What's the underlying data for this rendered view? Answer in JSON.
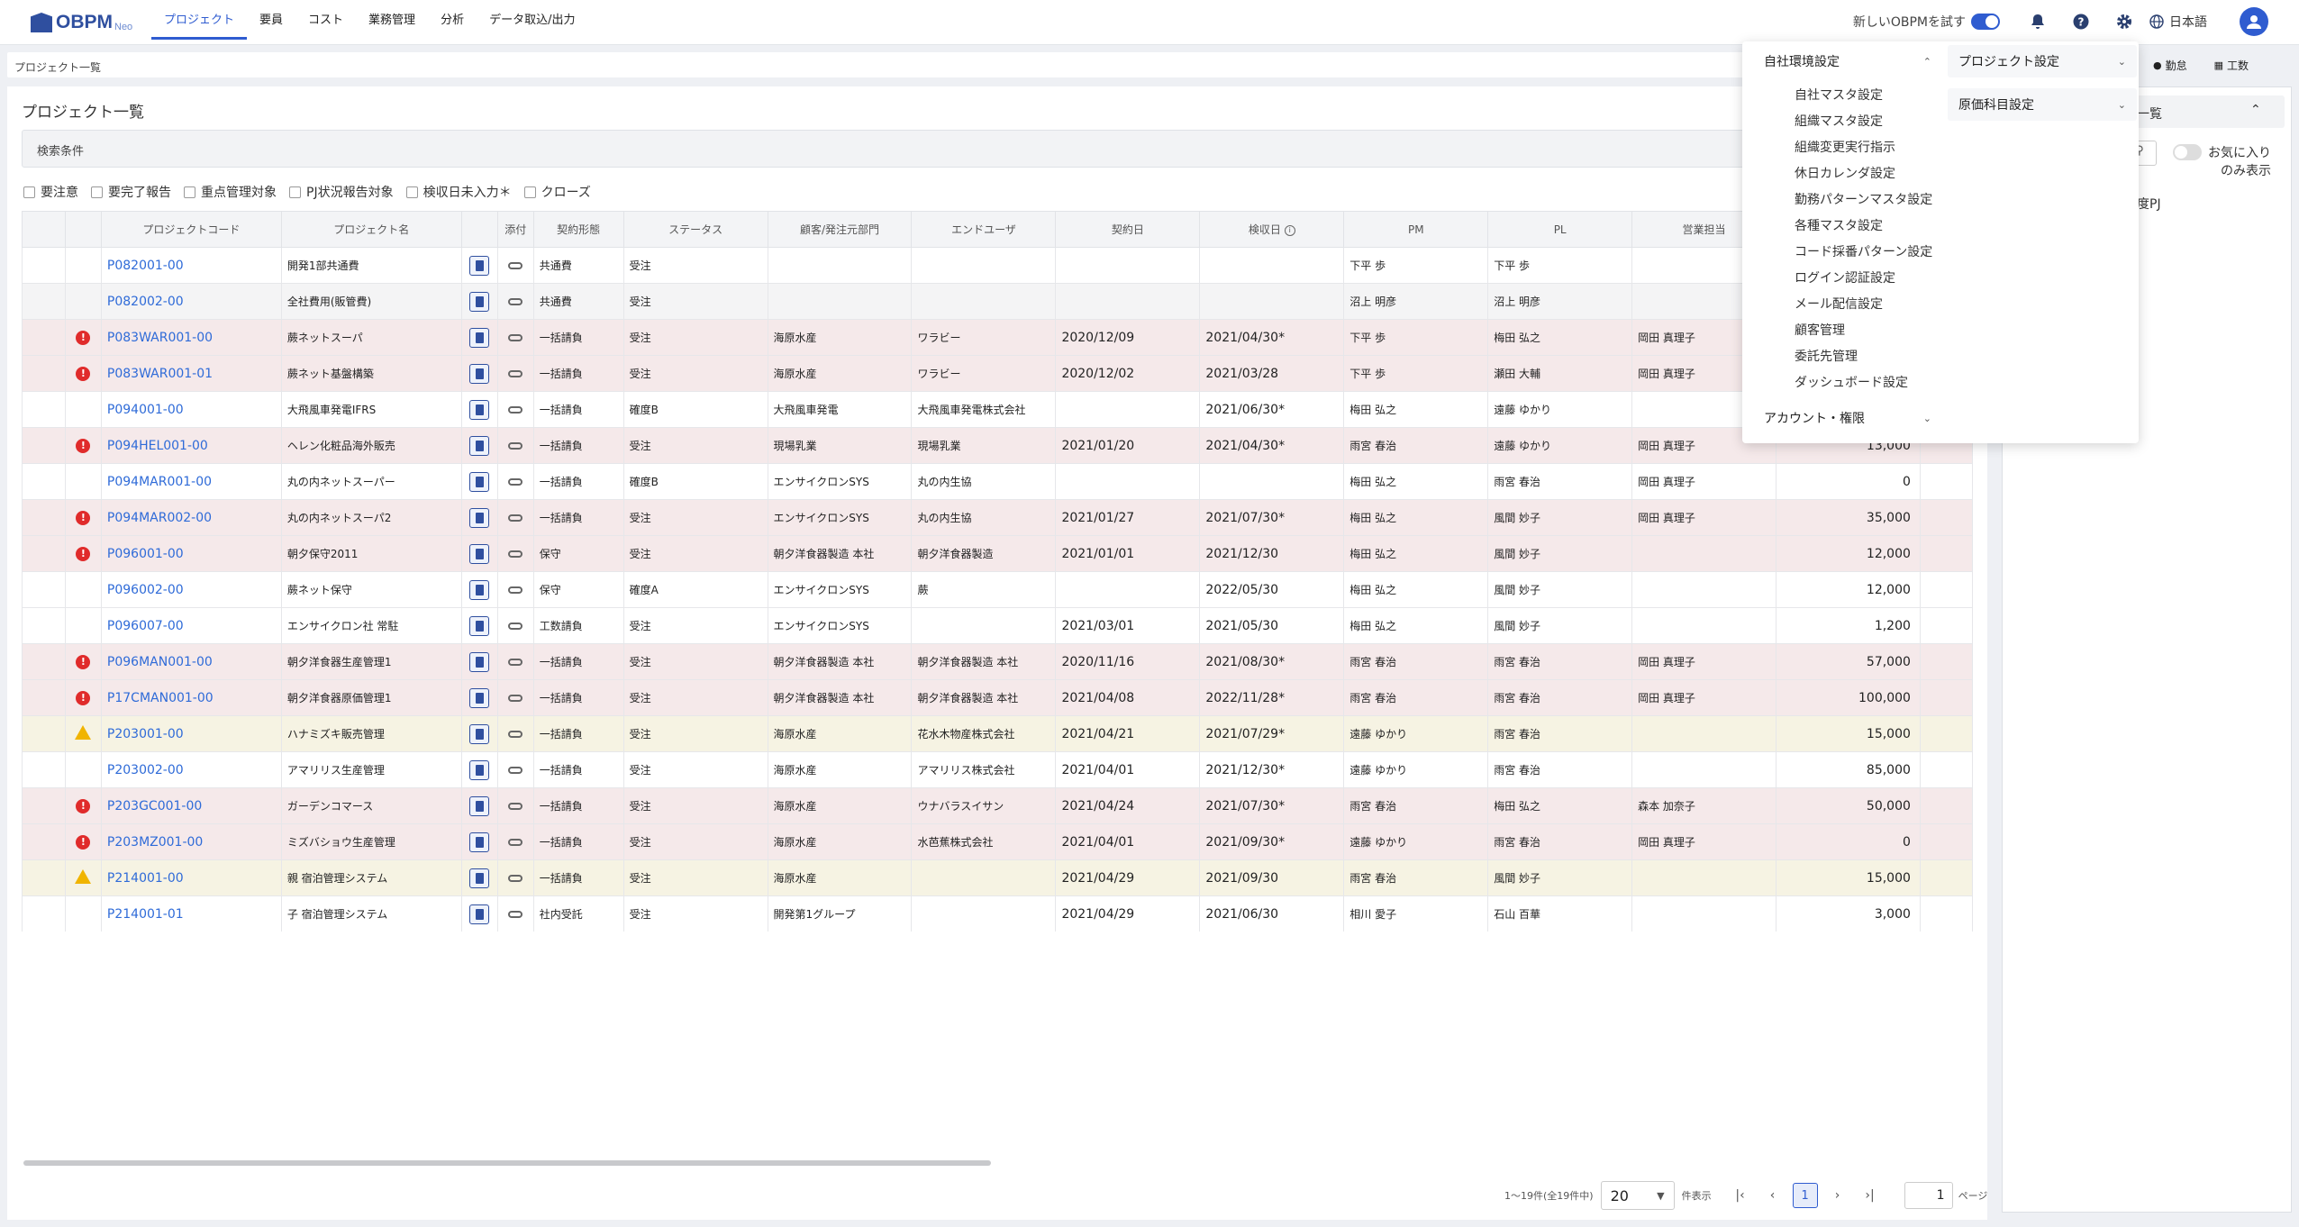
{
  "app": {
    "brand": "OBPM",
    "neo": "Neo"
  },
  "nav": [
    "プロジェクト",
    "要員",
    "コスト",
    "業務管理",
    "分析",
    "データ取込/出力"
  ],
  "topright": {
    "try_new": "新しいOBPMを試す",
    "language": "日本語"
  },
  "breadcrumb": "プロジェクト一覧",
  "breadcrumb_right": [
    "勤怠",
    "工数"
  ],
  "page_title": "プロジェクト一覧",
  "search_label": "検索条件",
  "filters": [
    "要注意",
    "要完了報告",
    "重点管理対象",
    "PJ状況報告対象",
    "検収日未入力＊",
    "クローズ"
  ],
  "columns": [
    "",
    "",
    "プロジェクトコード",
    "プロジェクト名",
    "",
    "添付",
    "契約形態",
    "ステータス",
    "顧客/発注元部門",
    "エンドユーザ",
    "契約日",
    "検収日",
    "PM",
    "PL",
    "営業担当",
    "",
    ""
  ],
  "rows": [
    {
      "tone": "white",
      "mark": "",
      "code": "P082001-00",
      "name": "開発1部共通費",
      "contract": "共通費",
      "status": "受注",
      "customer": "",
      "enduser": "",
      "cdate": "",
      "adate": "",
      "pm": "下平 歩",
      "pl": "下平 歩",
      "sales": "",
      "amount": ""
    },
    {
      "tone": "grey",
      "mark": "",
      "code": "P082002-00",
      "name": "全社費用(販管費)",
      "contract": "共通費",
      "status": "受注",
      "customer": "",
      "enduser": "",
      "cdate": "",
      "adate": "",
      "pm": "沼上 明彦",
      "pl": "沼上 明彦",
      "sales": "",
      "amount": ""
    },
    {
      "tone": "red",
      "mark": "alert",
      "code": "P083WAR001-00",
      "name": "蕨ネットスーパ",
      "contract": "一括請負",
      "status": "受注",
      "customer": "海原水産",
      "enduser": "ワラビー",
      "cdate": "2020/12/09",
      "adate": "2021/04/30*",
      "pm": "下平 歩",
      "pl": "梅田 弘之",
      "sales": "岡田 真理子",
      "amount": ""
    },
    {
      "tone": "red",
      "mark": "alert",
      "code": "P083WAR001-01",
      "name": "蕨ネット基盤構築",
      "contract": "一括請負",
      "status": "受注",
      "customer": "海原水産",
      "enduser": "ワラビー",
      "cdate": "2020/12/02",
      "adate": "2021/03/28",
      "pm": "下平 歩",
      "pl": "瀬田 大輔",
      "sales": "岡田 真理子",
      "amount": ""
    },
    {
      "tone": "white",
      "mark": "",
      "code": "P094001-00",
      "name": "大飛風車発電IFRS",
      "contract": "一括請負",
      "status": "確度B",
      "customer": "大飛風車発電",
      "enduser": "大飛風車発電株式会社",
      "cdate": "",
      "adate": "2021/06/30*",
      "pm": "梅田 弘之",
      "pl": "遠藤 ゆかり",
      "sales": "",
      "amount": ""
    },
    {
      "tone": "red",
      "mark": "alert",
      "code": "P094HEL001-00",
      "name": "ヘレン化粧品海外販売",
      "contract": "一括請負",
      "status": "受注",
      "customer": "現場乳業",
      "enduser": "現場乳業",
      "cdate": "2021/01/20",
      "adate": "2021/04/30*",
      "pm": "雨宮 春治",
      "pl": "遠藤 ゆかり",
      "sales": "岡田 真理子",
      "amount": "13,000"
    },
    {
      "tone": "white",
      "mark": "",
      "code": "P094MAR001-00",
      "name": "丸の内ネットスーパー",
      "contract": "一括請負",
      "status": "確度B",
      "customer": "エンサイクロンSYS",
      "enduser": "丸の内生協",
      "cdate": "",
      "adate": "",
      "pm": "梅田 弘之",
      "pl": "雨宮 春治",
      "sales": "岡田 真理子",
      "amount": "0"
    },
    {
      "tone": "red",
      "mark": "alert",
      "code": "P094MAR002-00",
      "name": "丸の内ネットスーパ2",
      "contract": "一括請負",
      "status": "受注",
      "customer": "エンサイクロンSYS",
      "enduser": "丸の内生協",
      "cdate": "2021/01/27",
      "adate": "2021/07/30*",
      "pm": "梅田 弘之",
      "pl": "風間 妙子",
      "sales": "岡田 真理子",
      "amount": "35,000"
    },
    {
      "tone": "red",
      "mark": "alert",
      "code": "P096001-00",
      "name": "朝夕保守2011",
      "contract": "保守",
      "status": "受注",
      "customer": "朝夕洋食器製造 本社",
      "enduser": "朝夕洋食器製造",
      "cdate": "2021/01/01",
      "adate": "2021/12/30",
      "pm": "梅田 弘之",
      "pl": "風間 妙子",
      "sales": "",
      "amount": "12,000"
    },
    {
      "tone": "white",
      "mark": "",
      "code": "P096002-00",
      "name": "蕨ネット保守",
      "contract": "保守",
      "status": "確度A",
      "customer": "エンサイクロンSYS",
      "enduser": "蕨",
      "cdate": "",
      "adate": "2022/05/30",
      "pm": "梅田 弘之",
      "pl": "風間 妙子",
      "sales": "",
      "amount": "12,000"
    },
    {
      "tone": "white",
      "mark": "",
      "code": "P096007-00",
      "name": "エンサイクロン社 常駐",
      "contract": "工数請負",
      "status": "受注",
      "customer": "エンサイクロンSYS",
      "enduser": "",
      "cdate": "2021/03/01",
      "adate": "2021/05/30",
      "pm": "梅田 弘之",
      "pl": "風間 妙子",
      "sales": "",
      "amount": "1,200"
    },
    {
      "tone": "red",
      "mark": "alert",
      "code": "P096MAN001-00",
      "name": "朝夕洋食器生産管理1",
      "contract": "一括請負",
      "status": "受注",
      "customer": "朝夕洋食器製造 本社",
      "enduser": "朝夕洋食器製造 本社",
      "cdate": "2020/11/16",
      "adate": "2021/08/30*",
      "pm": "雨宮 春治",
      "pl": "雨宮 春治",
      "sales": "岡田 真理子",
      "amount": "57,000"
    },
    {
      "tone": "red",
      "mark": "alert",
      "code": "P17CMAN001-00",
      "name": "朝夕洋食器原価管理1",
      "contract": "一括請負",
      "status": "受注",
      "customer": "朝夕洋食器製造 本社",
      "enduser": "朝夕洋食器製造 本社",
      "cdate": "2021/04/08",
      "adate": "2022/11/28*",
      "pm": "雨宮 春治",
      "pl": "雨宮 春治",
      "sales": "岡田 真理子",
      "amount": "100,000"
    },
    {
      "tone": "yellow",
      "mark": "warn",
      "code": "P203001-00",
      "name": "ハナミズキ販売管理",
      "contract": "一括請負",
      "status": "受注",
      "customer": "海原水産",
      "enduser": "花水木物産株式会社",
      "cdate": "2021/04/21",
      "adate": "2021/07/29*",
      "pm": "遠藤 ゆかり",
      "pl": "雨宮 春治",
      "sales": "",
      "amount": "15,000"
    },
    {
      "tone": "white",
      "mark": "",
      "code": "P203002-00",
      "name": "アマリリス生産管理",
      "contract": "一括請負",
      "status": "受注",
      "customer": "海原水産",
      "enduser": "アマリリス株式会社",
      "cdate": "2021/04/01",
      "adate": "2021/12/30*",
      "pm": "遠藤 ゆかり",
      "pl": "雨宮 春治",
      "sales": "",
      "amount": "85,000"
    },
    {
      "tone": "red",
      "mark": "alert",
      "code": "P203GC001-00",
      "name": "ガーデンコマース",
      "contract": "一括請負",
      "status": "受注",
      "customer": "海原水産",
      "enduser": "ウナバラスイサン",
      "cdate": "2021/04/24",
      "adate": "2021/07/30*",
      "pm": "雨宮 春治",
      "pl": "梅田 弘之",
      "sales": "森本 加奈子",
      "amount": "50,000"
    },
    {
      "tone": "red",
      "mark": "alert",
      "code": "P203MZ001-00",
      "name": "ミズバショウ生産管理",
      "contract": "一括請負",
      "status": "受注",
      "customer": "海原水産",
      "enduser": "水芭蕉株式会社",
      "cdate": "2021/04/01",
      "adate": "2021/09/30*",
      "pm": "遠藤 ゆかり",
      "pl": "雨宮 春治",
      "sales": "岡田 真理子",
      "amount": "0"
    },
    {
      "tone": "yellow",
      "mark": "warn",
      "code": "P214001-00",
      "name": "親 宿泊管理システム",
      "contract": "一括請負",
      "status": "受注",
      "customer": "海原水産",
      "enduser": "",
      "cdate": "2021/04/29",
      "adate": "2021/09/30",
      "pm": "雨宮 春治",
      "pl": "風間 妙子",
      "sales": "",
      "amount": "15,000"
    },
    {
      "tone": "white",
      "mark": "",
      "code": "P214001-01",
      "name": "子 宿泊管理システム",
      "contract": "社内受託",
      "status": "受注",
      "customer": "開発第1グループ",
      "enduser": "",
      "cdate": "2021/04/29",
      "adate": "2021/06/30",
      "pm": "相川 愛子",
      "pl": "石山 百華",
      "sales": "",
      "amount": "3,000"
    }
  ],
  "pagination": {
    "summary": "1～19件(全19件中)",
    "per_page": "20",
    "per_page_unit": "件表示",
    "current": "1",
    "page_input": "1",
    "page_unit": "ページ"
  },
  "right_panel": {
    "title": "一覧",
    "favorites_only": "お気に入り",
    "favorites_only2": "のみ表示",
    "pj": "度PJ"
  },
  "settings_menu": {
    "section1": "自社環境設定",
    "items": [
      "自社マスタ設定",
      "組織マスタ設定",
      "組織変更実行指示",
      "休日カレンダ設定",
      "勤務パターンマスタ設定",
      "各種マスタ設定",
      "コード採番パターン設定",
      "ログイン認証設定",
      "メール配信設定",
      "顧客管理",
      "委託先管理",
      "ダッシュボード設定"
    ],
    "section2": "アカウント・権限",
    "col2_a": "プロジェクト設定",
    "col2_b": "原価科目設定"
  },
  "colors": {
    "accent": "#2f5cd0",
    "alert": "#e02b2b",
    "warn": "#f0b400",
    "row_red": "#f5e9ea",
    "row_yellow": "#f6f3e3"
  }
}
